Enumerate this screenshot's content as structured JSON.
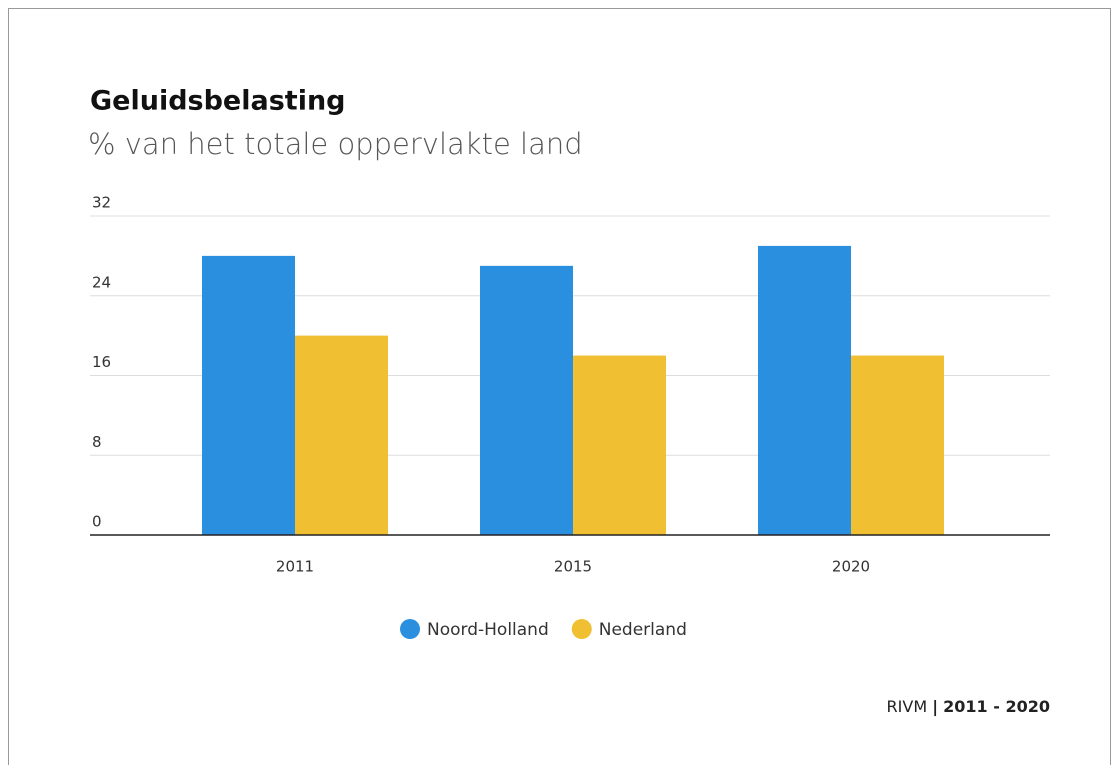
{
  "chart_data": {
    "type": "bar",
    "title": "Geluidsbelasting",
    "subtitle": "% van het totale oppervlakte land",
    "categories": [
      "2011",
      "2015",
      "2020"
    ],
    "series": [
      {
        "name": "Noord-Holland",
        "color": "#2b8fe0",
        "values": [
          28,
          27,
          29
        ]
      },
      {
        "name": "Nederland",
        "color": "#f0c032",
        "values": [
          20,
          18,
          18
        ]
      }
    ],
    "ylim": [
      0,
      32
    ],
    "yticks": [
      0,
      8,
      16,
      24,
      32
    ],
    "grid": true,
    "source": "RIVM",
    "separator": "|",
    "period": "2011 - 2020"
  }
}
